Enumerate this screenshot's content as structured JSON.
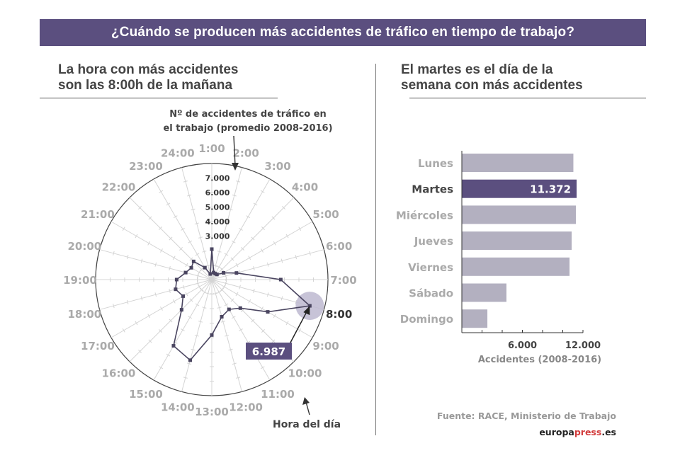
{
  "header": {
    "title": "¿Cuándo se producen más accidentes de tráfico en tiempo de trabajo?"
  },
  "left": {
    "subtitle_line1": "La hora con más accidentes",
    "subtitle_line2": "son las 8:00h de la mañana",
    "note_line1": "Nº de accidentes de tráfico en",
    "note_line2": "el trabajo (promedio 2008-2016)",
    "axis_note": "Hora del día"
  },
  "right": {
    "subtitle_line1": "El martes es el día de la",
    "subtitle_line2": "semana con más accidentes"
  },
  "footer": {
    "source": "Fuente: RACE, Ministerio de Trabajo",
    "brand_main": "europa",
    "brand_highlight": "press",
    "brand_tld": ".es"
  },
  "colors": {
    "accent": "#5b4f7f",
    "bar": "#b3b0c0",
    "highlight_circle": "#bdb8d0",
    "label_gray": "#aaaaaa"
  },
  "chart_data": [
    {
      "type": "radar",
      "categories": [
        "1:00",
        "2:00",
        "3:00",
        "4:00",
        "5:00",
        "6:00",
        "7:00",
        "8:00",
        "9:00",
        "10:00",
        "11:00",
        "12:00",
        "13:00",
        "14:00",
        "15:00",
        "16:00",
        "17:00",
        "18:00",
        "19:00",
        "20:00",
        "21:00",
        "22:00",
        "23:00",
        "24:00"
      ],
      "values": [
        2100,
        500,
        470,
        500,
        930,
        1760,
        4750,
        6987,
        4450,
        2780,
        2370,
        2650,
        3820,
        5750,
        5270,
        2940,
        2280,
        2580,
        2420,
        1860,
        1630,
        1770,
        950,
        400
      ],
      "radial_ticks": [
        "3.000",
        "4.000",
        "5.000",
        "6.000",
        "7.000"
      ],
      "rlim": [
        0,
        8000
      ],
      "highlight": {
        "category": "8:00",
        "label": "6.987"
      }
    },
    {
      "type": "bar",
      "orientation": "horizontal",
      "categories": [
        "Lunes",
        "Martes",
        "Miércoles",
        "Jueves",
        "Viernes",
        "Sábado",
        "Domingo"
      ],
      "values": [
        11050,
        11372,
        11300,
        10880,
        10670,
        4420,
        2530
      ],
      "highlight": {
        "category": "Martes",
        "label": "11.372"
      },
      "xlabel": "Accidentes (2008-2016)",
      "xticks": [
        "6.000",
        "12.000"
      ],
      "xlim": [
        0,
        12000
      ]
    }
  ]
}
